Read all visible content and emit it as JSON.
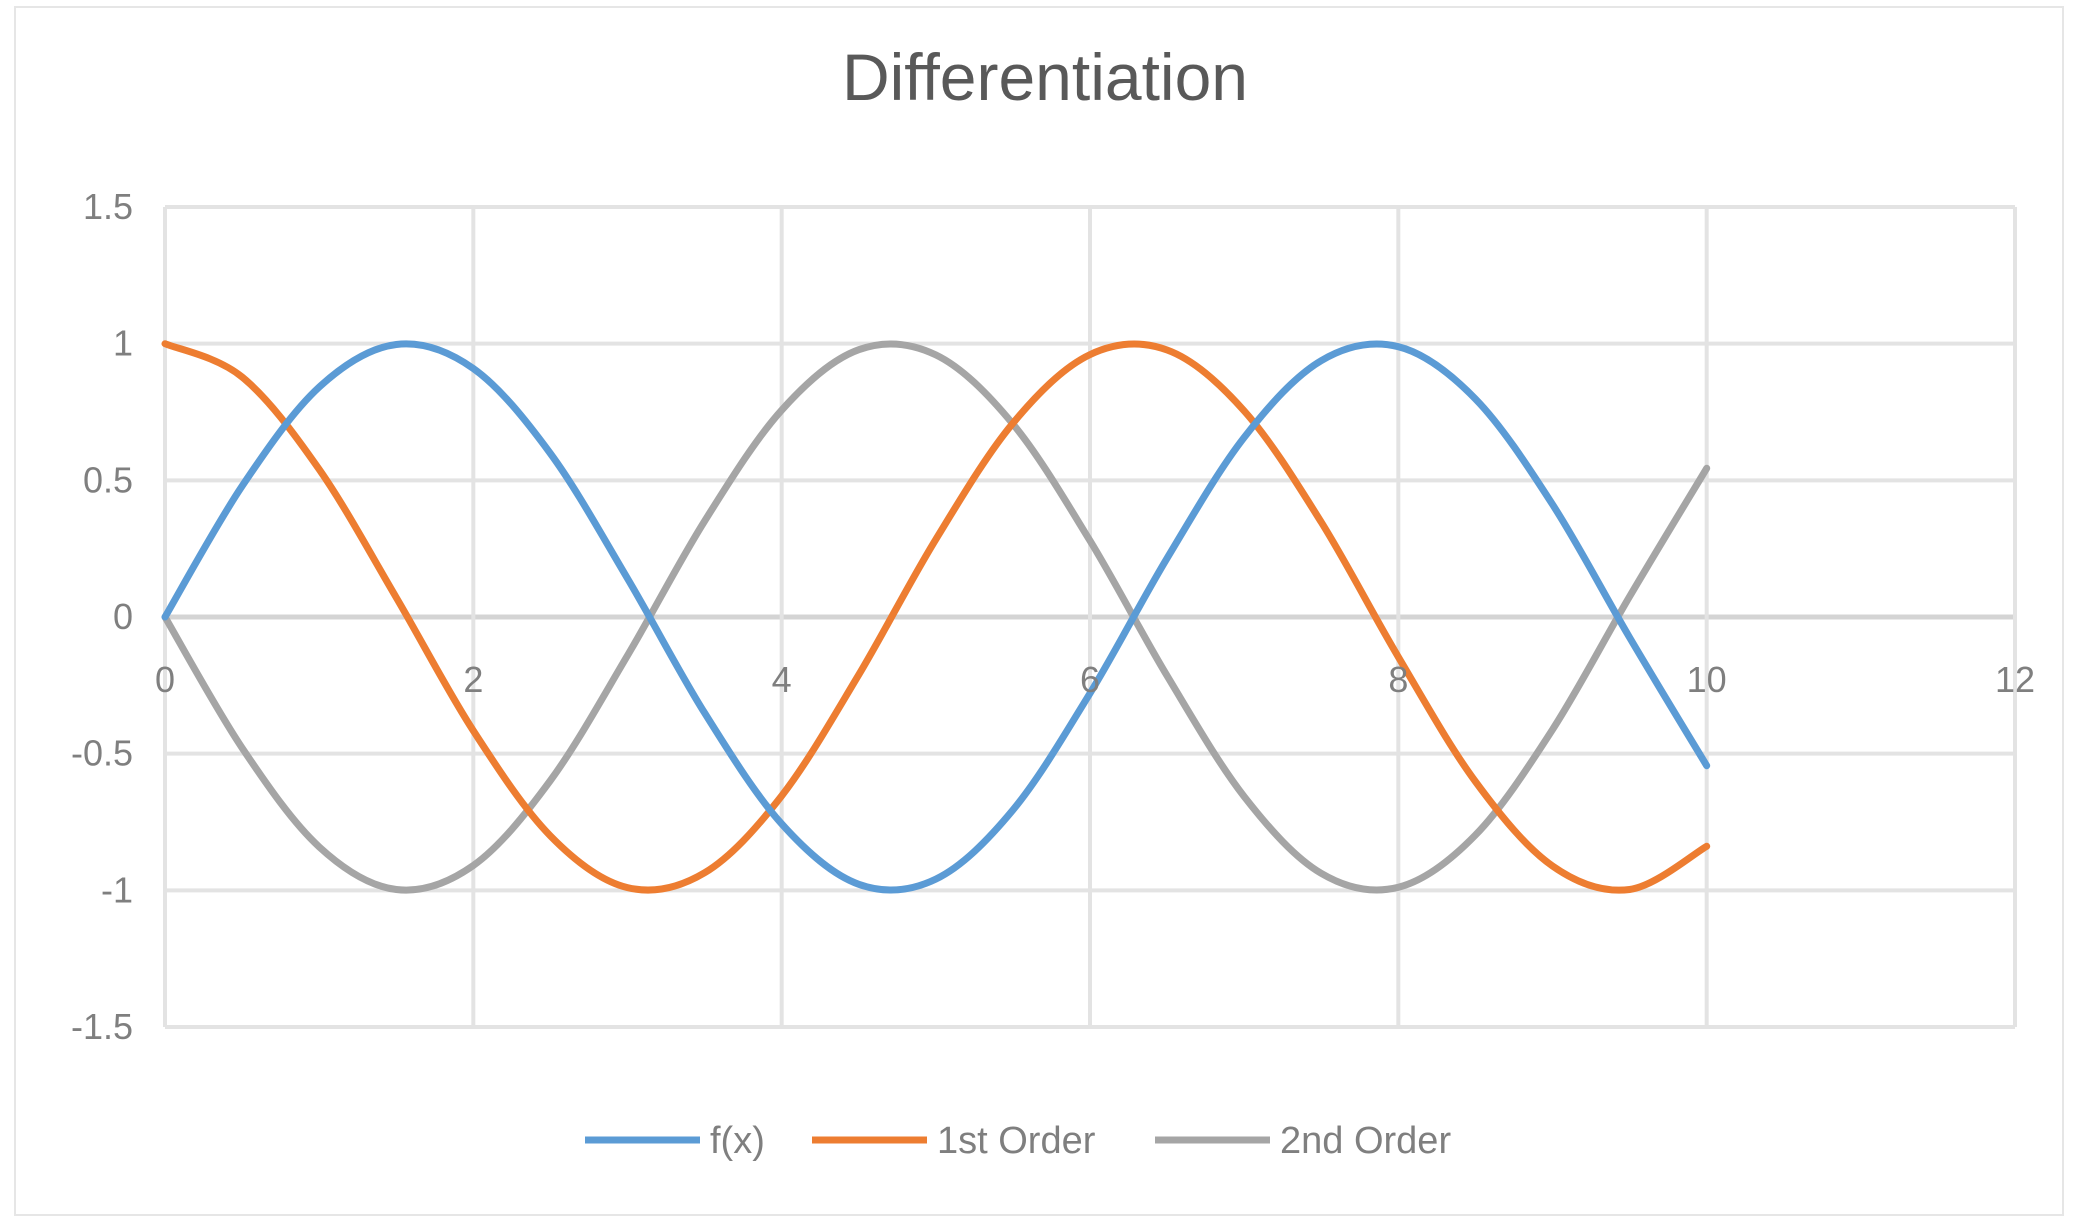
{
  "chart_data": {
    "type": "line",
    "title": "Differentiation",
    "xlabel": "",
    "ylabel": "",
    "xlim": [
      0,
      12
    ],
    "ylim": [
      -1.5,
      1.5
    ],
    "x_ticks": [
      0,
      2,
      4,
      6,
      8,
      10,
      12
    ],
    "x_tick_labels": [
      "0",
      "2",
      "4",
      "6",
      "8",
      "10",
      "12"
    ],
    "y_ticks": [
      1.5,
      1,
      0.5,
      0,
      -0.5,
      -1,
      -1.5
    ],
    "y_tick_labels": [
      "1.5",
      "1",
      "0.5",
      "0",
      "-0.5",
      "-1",
      "-1.5"
    ],
    "grid": true,
    "legend_position": "bottom",
    "x": [
      0,
      0.5,
      1,
      1.5,
      2,
      2.5,
      3,
      3.5,
      4,
      4.5,
      5,
      5.5,
      6,
      6.5,
      7,
      7.5,
      8,
      8.5,
      9,
      9.5,
      10
    ],
    "series": [
      {
        "name": "f(x)",
        "color": "#5b9bd5",
        "values": [
          0,
          0.479,
          0.841,
          0.997,
          0.909,
          0.598,
          0.141,
          -0.351,
          -0.757,
          -0.978,
          -0.959,
          -0.706,
          -0.279,
          0.215,
          0.657,
          0.938,
          0.989,
          0.798,
          0.412,
          -0.075,
          -0.544
        ]
      },
      {
        "name": "1st Order",
        "color": "#ed7d31",
        "values": [
          1,
          0.878,
          0.54,
          0.071,
          -0.416,
          -0.801,
          -0.99,
          -0.936,
          -0.654,
          -0.211,
          0.284,
          0.709,
          0.96,
          0.977,
          0.754,
          0.347,
          -0.146,
          -0.602,
          -0.911,
          -0.997,
          -0.839
        ]
      },
      {
        "name": "2nd Order",
        "color": "#a5a5a5",
        "values": [
          0,
          -0.479,
          -0.841,
          -0.997,
          -0.909,
          -0.598,
          -0.141,
          0.351,
          0.757,
          0.978,
          0.959,
          0.706,
          0.279,
          -0.215,
          -0.657,
          -0.938,
          -0.989,
          -0.798,
          -0.412,
          0.075,
          0.544
        ]
      }
    ]
  }
}
